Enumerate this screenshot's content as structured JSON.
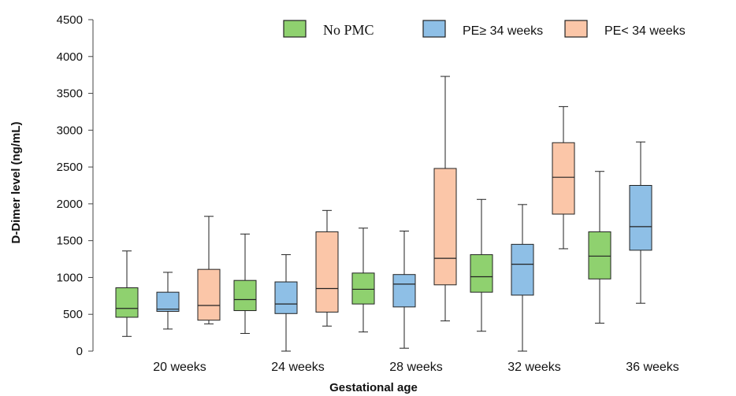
{
  "chart_data": {
    "type": "box",
    "title": "",
    "xlabel": "Gestational age",
    "ylabel": "D-Dimer level (ng/mL)",
    "ylim": [
      0,
      4500
    ],
    "yticks": [
      0,
      500,
      1000,
      1500,
      2000,
      2500,
      3000,
      3500,
      4000,
      4500
    ],
    "categories": [
      "20 weeks",
      "24 weeks",
      "28 weeks",
      "32 weeks",
      "36 weeks"
    ],
    "legend_position": "top-right",
    "grid": false,
    "series": [
      {
        "name": "No PMC",
        "color": "#8fd16f",
        "boxes": [
          {
            "min": 200,
            "q1": 460,
            "median": 580,
            "q3": 860,
            "max": 1360
          },
          {
            "min": 240,
            "q1": 550,
            "median": 700,
            "q3": 960,
            "max": 1590
          },
          {
            "min": 260,
            "q1": 640,
            "median": 840,
            "q3": 1060,
            "max": 1670
          },
          {
            "min": 270,
            "q1": 800,
            "median": 1010,
            "q3": 1310,
            "max": 2060
          },
          {
            "min": 380,
            "q1": 980,
            "median": 1290,
            "q3": 1620,
            "max": 2440
          }
        ]
      },
      {
        "name": "PE≥ 34 weeks",
        "color": "#8ebfe6",
        "boxes": [
          {
            "min": 300,
            "q1": 540,
            "median": 570,
            "q3": 800,
            "max": 1070
          },
          {
            "min": 0,
            "q1": 510,
            "median": 640,
            "q3": 940,
            "max": 1310
          },
          {
            "min": 40,
            "q1": 600,
            "median": 910,
            "q3": 1040,
            "max": 1630
          },
          {
            "min": 0,
            "q1": 760,
            "median": 1180,
            "q3": 1450,
            "max": 1990
          },
          {
            "min": 650,
            "q1": 1370,
            "median": 1690,
            "q3": 2250,
            "max": 2840
          }
        ]
      },
      {
        "name": "PE< 34 weeks",
        "color": "#fbc6a8",
        "boxes": [
          {
            "min": 370,
            "q1": 420,
            "median": 620,
            "q3": 1110,
            "max": 1830
          },
          {
            "min": 340,
            "q1": 530,
            "median": 850,
            "q3": 1620,
            "max": 1910
          },
          {
            "min": 410,
            "q1": 900,
            "median": 1260,
            "q3": 2480,
            "max": 3730
          },
          {
            "min": 1390,
            "q1": 1860,
            "median": 2360,
            "q3": 2830,
            "max": 3320
          },
          null
        ]
      }
    ]
  }
}
